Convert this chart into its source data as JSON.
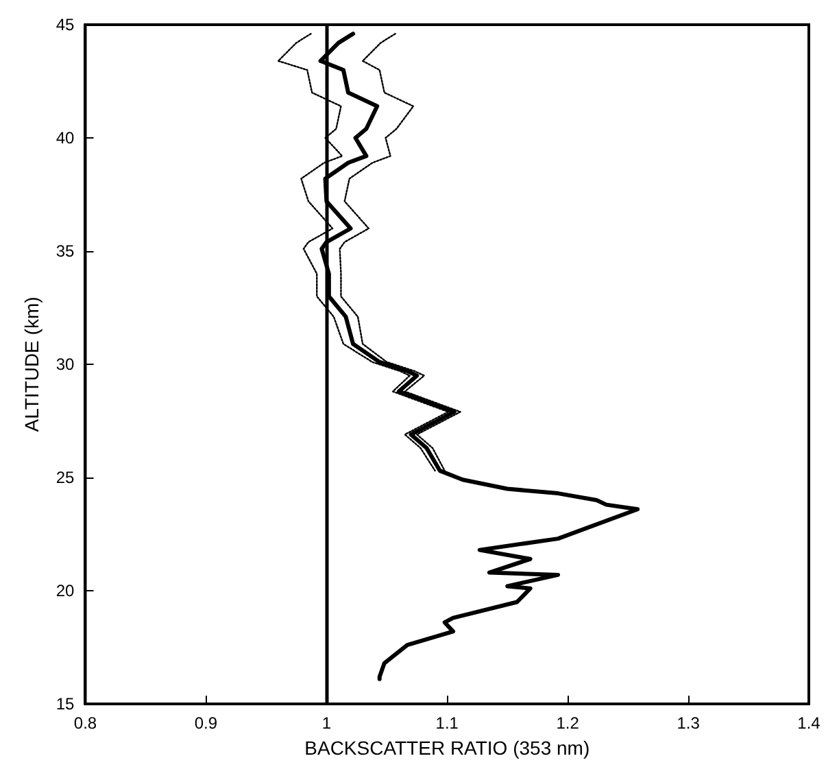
{
  "chart_data": {
    "type": "line",
    "xlabel": "BACKSCATTER RATIO (353 nm)",
    "ylabel": "ALTITUDE (km)",
    "xlim": [
      0.8,
      1.4
    ],
    "xticks": [
      0.8,
      0.9,
      1,
      1.1,
      1.2,
      1.3,
      1.4
    ],
    "ylim": [
      15,
      45
    ],
    "yticks": [
      15,
      20,
      25,
      30,
      35,
      40,
      45
    ],
    "marker": "none",
    "ref_lines": [
      {
        "axis": "x",
        "value": 1,
        "color": "#000000",
        "line_style": "solid"
      }
    ],
    "series": [
      {
        "color": "#000000",
        "line_style": "solid",
        "x": [
          1.022,
          1.01,
          0.995,
          1.014,
          1.018,
          1.042,
          1.033,
          1.024,
          1.033,
          1.018,
          0.999,
          1.0,
          1.02,
          1.0,
          0.996,
          1.002,
          1.002,
          1.016,
          1.022,
          1.044,
          1.067,
          1.075,
          1.06,
          1.106,
          1.07,
          1.083,
          1.094,
          1.113,
          1.15,
          1.192,
          1.224,
          1.232,
          1.258,
          1.192,
          1.127,
          1.169,
          1.135,
          1.192,
          1.15,
          1.169,
          1.158,
          1.105,
          1.098,
          1.105,
          1.067,
          1.048,
          1.044,
          1.044
        ],
        "values": [
          44.6,
          44.2,
          43.4,
          43.0,
          42.0,
          41.4,
          40.4,
          40.0,
          39.2,
          38.9,
          38.2,
          37.2,
          36.0,
          35.4,
          35.1,
          34.0,
          33.0,
          32.1,
          30.9,
          30.1,
          29.7,
          29.5,
          28.8,
          27.9,
          26.9,
          26.3,
          25.3,
          24.9,
          24.5,
          24.3,
          24.0,
          23.8,
          23.6,
          22.3,
          21.8,
          21.4,
          20.8,
          20.7,
          20.2,
          20.1,
          19.5,
          18.8,
          18.6,
          18.2,
          17.6,
          16.8,
          16.2,
          16.1
        ]
      },
      {
        "color": "#000000",
        "line_style": "dotted",
        "x": [
          0.987,
          0.975,
          0.96,
          0.984,
          0.988,
          1.012,
          1.008,
          0.999,
          1.013,
          0.998,
          0.979,
          0.985,
          1.005,
          0.985,
          0.981,
          0.992,
          0.992,
          1.006,
          1.014,
          1.038,
          1.061,
          1.069,
          1.055,
          1.101,
          1.065,
          1.078,
          1.09
        ],
        "values": [
          44.6,
          44.2,
          43.4,
          43.0,
          42.0,
          41.4,
          40.4,
          40.0,
          39.2,
          38.9,
          38.2,
          37.2,
          36.0,
          35.4,
          35.1,
          34.0,
          33.0,
          32.1,
          30.9,
          30.1,
          29.7,
          29.5,
          28.8,
          27.9,
          26.9,
          26.3,
          25.3
        ]
      },
      {
        "color": "#000000",
        "line_style": "dotted",
        "x": [
          1.057,
          1.045,
          1.03,
          1.044,
          1.048,
          1.072,
          1.058,
          1.049,
          1.053,
          1.038,
          1.019,
          1.015,
          1.035,
          1.015,
          1.011,
          1.012,
          1.012,
          1.026,
          1.03,
          1.05,
          1.073,
          1.081,
          1.065,
          1.111,
          1.075,
          1.088,
          1.098
        ],
        "values": [
          44.6,
          44.2,
          43.4,
          43.0,
          42.0,
          41.4,
          40.4,
          40.0,
          39.2,
          38.9,
          38.2,
          37.2,
          36.0,
          35.4,
          35.1,
          34.0,
          33.0,
          32.1,
          30.9,
          30.1,
          29.7,
          29.5,
          28.8,
          27.9,
          26.9,
          26.3,
          25.3
        ]
      }
    ]
  }
}
